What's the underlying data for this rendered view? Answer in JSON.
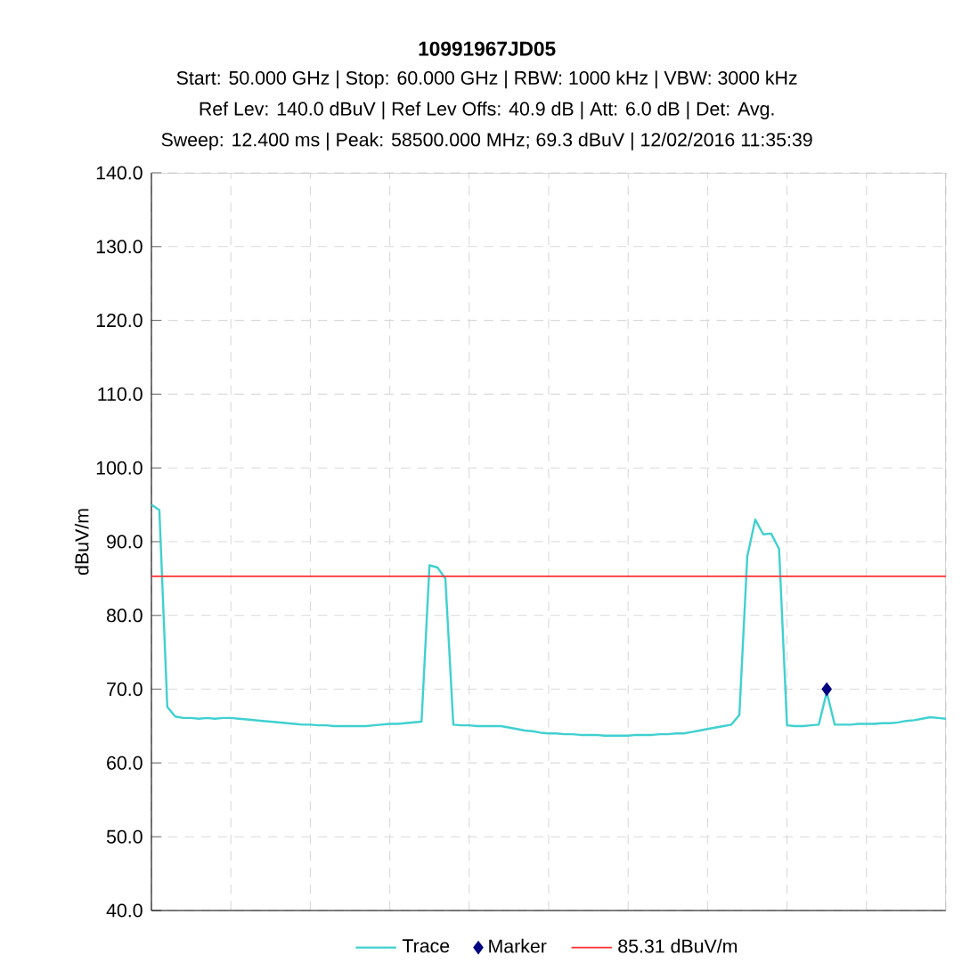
{
  "chart_data": {
    "type": "line",
    "title": "10991967JD05",
    "subtitle": "Start: 50.000 GHz | Stop: 60.000 GHz | RBW: 1000 kHz | VBW: 3000 kHz",
    "annotations": [
      "Ref Lev: 140.0 dBuV | Ref Lev Offs: 40.9 dB | Att: 6.0 dB | Det: Avg.",
      "Sweep: 12.400 ms | Peak: 58500.000 MHz; 69.3 dBuV | 12/02/2016 11:35:39"
    ],
    "ylabel": "dBuV/m",
    "categories": [
      null,
      null,
      null,
      null,
      null,
      null,
      null,
      null,
      null,
      null,
      null,
      null,
      null,
      null,
      null,
      null,
      null,
      null,
      null,
      null,
      null,
      null,
      null,
      null,
      null,
      null,
      null,
      null,
      null,
      null,
      null,
      null,
      null,
      null,
      null,
      null,
      null,
      null,
      null,
      null,
      null,
      null,
      null,
      null,
      null,
      null,
      null,
      null,
      null,
      null,
      null,
      null,
      null,
      null,
      null,
      null,
      null,
      null,
      null,
      null,
      null,
      null,
      null,
      null,
      null,
      null,
      null,
      null,
      null,
      null,
      null,
      null,
      null,
      null,
      null,
      null,
      null,
      null,
      null,
      null,
      null,
      null,
      null,
      null,
      null,
      null,
      null,
      null,
      null,
      null,
      null,
      null,
      null,
      null,
      null,
      null,
      null,
      null,
      null,
      null,
      null
    ],
    "ylim": [
      40,
      140
    ],
    "yticks": [
      {
        "value": 40,
        "label": "40.0"
      },
      {
        "value": 50,
        "label": "50.0"
      },
      {
        "value": 60,
        "label": "60.0"
      },
      {
        "value": 70,
        "label": "70.0"
      },
      {
        "value": 80,
        "label": "80.0"
      },
      {
        "value": 90,
        "label": "90.0"
      },
      {
        "value": 100,
        "label": "100.0"
      },
      {
        "value": 110,
        "label": "110.0"
      },
      {
        "value": 120,
        "label": "120.0"
      },
      {
        "value": 130,
        "label": "130.0"
      },
      {
        "value": 140,
        "label": "140.0"
      }
    ],
    "grid": true,
    "legend": "bottom",
    "series": [
      {
        "name": "Trace",
        "color": "#40d0d0",
        "marker": "none",
        "values": [
          95.0,
          94.3,
          67.6,
          66.3,
          66.1,
          66.1,
          66.0,
          66.1,
          66.0,
          66.1,
          66.1,
          66.0,
          65.9,
          65.8,
          65.7,
          65.6,
          65.5,
          65.4,
          65.3,
          65.2,
          65.2,
          65.1,
          65.1,
          65.0,
          65.0,
          65.0,
          65.0,
          65.0,
          65.1,
          65.2,
          65.3,
          65.3,
          65.4,
          65.5,
          65.6,
          86.8,
          86.5,
          85.0,
          65.2,
          65.1,
          65.1,
          65.0,
          65.0,
          65.0,
          65.0,
          64.8,
          64.6,
          64.4,
          64.3,
          64.1,
          64.0,
          64.0,
          63.9,
          63.9,
          63.8,
          63.8,
          63.8,
          63.7,
          63.7,
          63.7,
          63.7,
          63.8,
          63.8,
          63.8,
          63.9,
          63.9,
          64.0,
          64.0,
          64.2,
          64.4,
          64.6,
          64.8,
          65.0,
          65.2,
          66.5,
          88.0,
          93.0,
          91.0,
          91.1,
          89.0,
          65.1,
          65.0,
          65.0,
          65.1,
          65.2,
          69.6,
          65.2,
          65.2,
          65.2,
          65.3,
          65.3,
          65.3,
          65.4,
          65.4,
          65.5,
          65.7,
          65.8,
          66.0,
          66.2,
          66.1,
          66.0
        ]
      },
      {
        "name": "Marker",
        "type": "scatter",
        "color": "#000080",
        "marker": "diamond",
        "values": [
          null,
          null,
          null,
          null,
          null,
          null,
          null,
          null,
          null,
          null,
          null,
          null,
          null,
          null,
          null,
          null,
          null,
          null,
          null,
          null,
          null,
          null,
          null,
          null,
          null,
          null,
          null,
          null,
          null,
          null,
          null,
          null,
          null,
          null,
          null,
          null,
          null,
          null,
          null,
          null,
          null,
          null,
          null,
          null,
          null,
          null,
          null,
          null,
          null,
          null,
          null,
          null,
          null,
          null,
          null,
          null,
          null,
          null,
          null,
          null,
          null,
          null,
          null,
          null,
          null,
          null,
          null,
          null,
          null,
          null,
          null,
          null,
          null,
          null,
          null,
          null,
          null,
          null,
          null,
          null,
          null,
          null,
          null,
          null,
          null,
          70.0,
          null,
          null,
          null,
          null,
          null,
          null,
          null,
          null,
          null,
          null,
          null,
          null,
          null,
          null,
          null
        ]
      }
    ],
    "ref_lines": [
      {
        "axis": "y",
        "value": 85.31,
        "label": "85.31 dBuV/m",
        "color": "#ff3030"
      }
    ]
  }
}
